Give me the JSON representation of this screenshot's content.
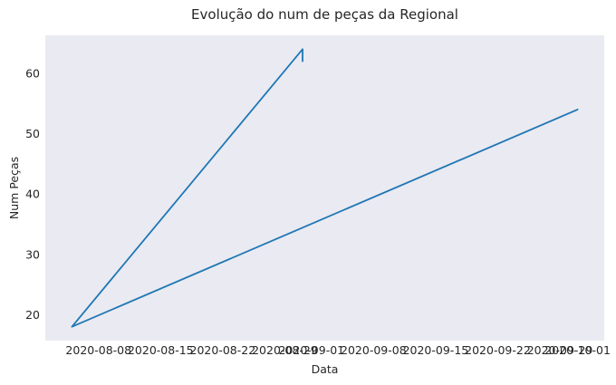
{
  "chart_data": {
    "type": "line",
    "title": "Evolução do num de peças da Regional",
    "xlabel": "Data",
    "ylabel": "Num Peças",
    "xlim": [
      "2020-08-02",
      "2020-10-04"
    ],
    "ylim": [
      15.7,
      66.3
    ],
    "grid": false,
    "background_color": "#eaeaf2",
    "line_color": "#1f77b4",
    "x_ticks": [
      {
        "date": "2020-08-08",
        "label": "2020-08-08"
      },
      {
        "date": "2020-08-15",
        "label": "2020-08-15"
      },
      {
        "date": "2020-08-22",
        "label": "2020-08-22"
      },
      {
        "date": "2020-08-29",
        "label": "2020-08-29"
      },
      {
        "date": "2020-09-01",
        "label": "2020-09-01"
      },
      {
        "date": "2020-09-08",
        "label": "2020-09-08"
      },
      {
        "date": "2020-09-15",
        "label": "2020-09-15"
      },
      {
        "date": "2020-09-22",
        "label": "2020-09-22"
      },
      {
        "date": "2020-09-29",
        "label": "2020-09-29"
      },
      {
        "date": "2020-10-01",
        "label": "2020-10-01"
      }
    ],
    "y_ticks": [
      20,
      30,
      40,
      50,
      60
    ],
    "series": [
      {
        "points": [
          {
            "x": "2020-10-01",
            "y": 54
          },
          {
            "x": "2020-08-05",
            "y": 18
          },
          {
            "x": "2020-08-31",
            "y": 64
          },
          {
            "x": "2020-08-31",
            "y": 62
          }
        ]
      }
    ]
  }
}
